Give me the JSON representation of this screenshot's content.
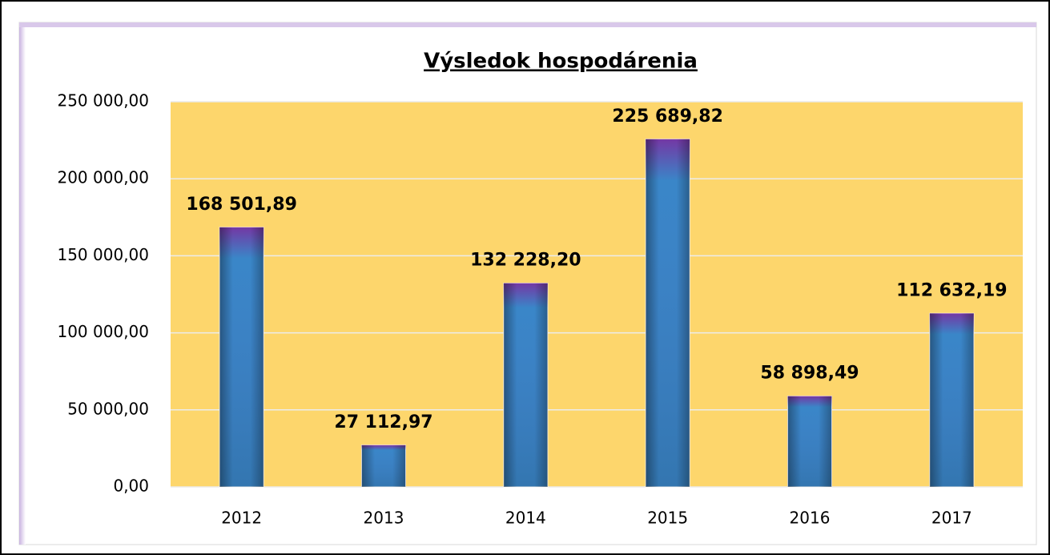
{
  "chart_data": {
    "type": "bar",
    "title": "Výsledok hospodárenia",
    "categories": [
      "2012",
      "2013",
      "2014",
      "2015",
      "2016",
      "2017"
    ],
    "values": [
      168501.89,
      27112.97,
      132228.2,
      225689.82,
      58898.49,
      112632.19
    ],
    "value_labels": [
      "168 501,89",
      "27 112,97",
      "132 228,20",
      "225 689,82",
      "58 898,49",
      "112 632,19"
    ],
    "color": "#3a86c8",
    "ylim": [
      0,
      250000
    ],
    "yticks": [
      {
        "value": 0,
        "label": "0,00"
      },
      {
        "value": 50000,
        "label": "50 000,00"
      },
      {
        "value": 100000,
        "label": "100 000,00"
      },
      {
        "value": 150000,
        "label": "150 000,00"
      },
      {
        "value": 200000,
        "label": "200 000,00"
      },
      {
        "value": 250000,
        "label": "250 000,00"
      }
    ],
    "grid": true
  }
}
